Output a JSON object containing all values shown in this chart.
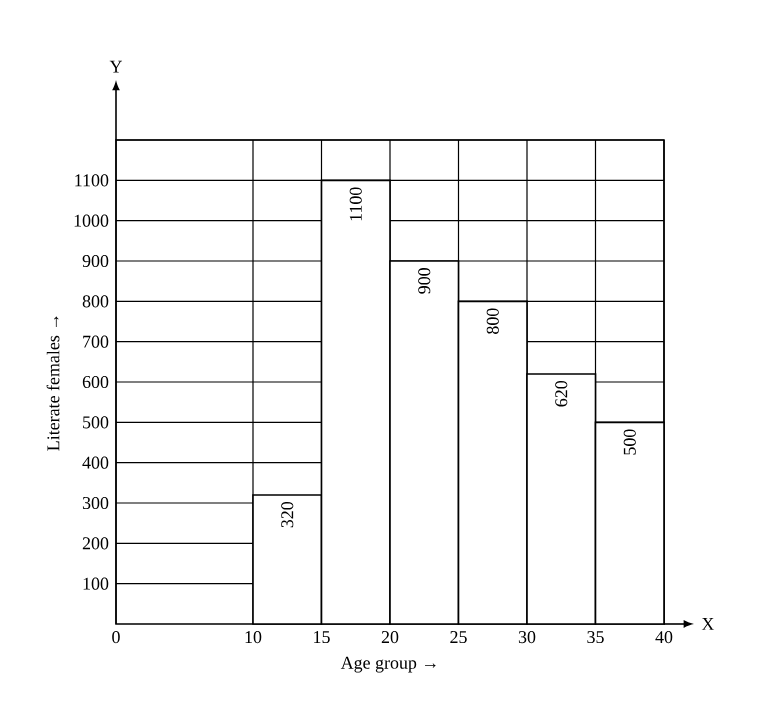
{
  "chart_data": {
    "type": "histogram",
    "xlabel": "Age group →",
    "ylabel": "Literate females →",
    "bins": [
      10,
      15,
      20,
      25,
      30,
      35,
      40
    ],
    "values": [
      320,
      1100,
      900,
      800,
      620,
      500
    ],
    "color": "#ffffff",
    "data_labels": true,
    "xlim": [
      0,
      40
    ],
    "xticks": [
      0,
      10,
      15,
      20,
      25,
      30,
      35,
      40
    ],
    "ylim": [
      0,
      1200
    ],
    "yticks": [
      100,
      200,
      300,
      400,
      500,
      600,
      700,
      800,
      900,
      1000,
      1100,
      {
        "value": 1200,
        "label": null
      }
    ],
    "grid": true,
    "annotations": [
      "Y",
      "X"
    ]
  }
}
